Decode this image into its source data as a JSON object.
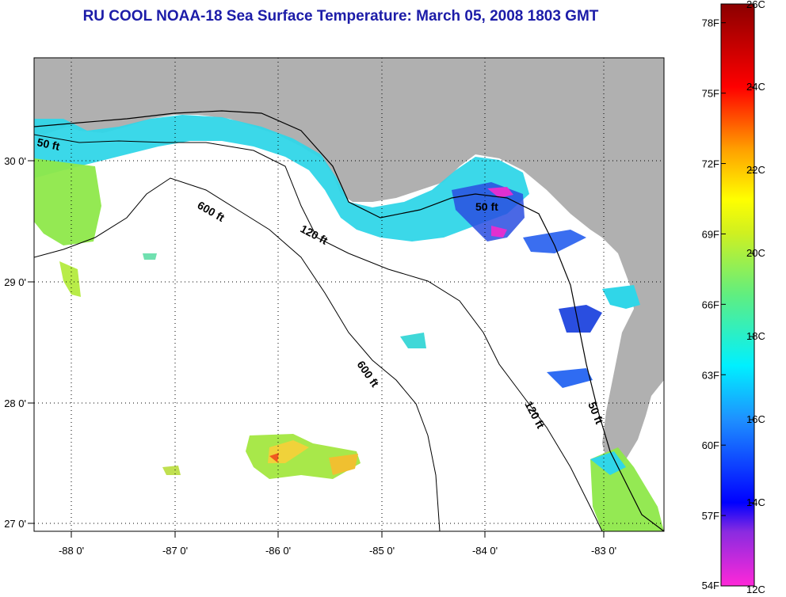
{
  "title": "RU COOL  NOAA-18  Sea Surface Temperature:  March 05, 2008 1803 GMT",
  "map": {
    "lon_labels": [
      "-88 0'",
      "-87 0'",
      "-86 0'",
      "-85 0'",
      "-84 0'",
      "-83 0'"
    ],
    "lat_labels": [
      "30 0'",
      "29 0'",
      "28 0'",
      "27 0'"
    ],
    "contours": [
      {
        "label": "50 ft"
      },
      {
        "label": "600 ft"
      },
      {
        "label": "120 ft"
      },
      {
        "label": "50 ft"
      },
      {
        "label": "600 ft"
      },
      {
        "label": "120 ft"
      },
      {
        "label": "50 ft"
      }
    ],
    "colors": {
      "land": "#b0b0b0",
      "water": "#ffffff",
      "grid": "#000000",
      "cool_water": "#30d6e8",
      "green_water": "#8ee84a",
      "warm_water": "#f0d23a",
      "cold_patch": "#2a4ee0",
      "magenta_patch": "#e030d0"
    }
  },
  "colorbar": {
    "celsius_labels": [
      "26C",
      "24C",
      "22C",
      "20C",
      "18C",
      "16C",
      "14C",
      "12C"
    ],
    "fahrenheit_labels": [
      "78F",
      "75F",
      "72F",
      "69F",
      "66F",
      "63F",
      "60F",
      "57F",
      "54F"
    ],
    "range_c": [
      12,
      26
    ],
    "range_f": [
      54,
      78.8
    ],
    "gradient": [
      {
        "c": 12,
        "color": "#ff28d8"
      },
      {
        "c": 13.3,
        "color": "#8a2be0"
      },
      {
        "c": 14,
        "color": "#0000ff"
      },
      {
        "c": 16,
        "color": "#1e90ff"
      },
      {
        "c": 17.3,
        "color": "#00f0ff"
      },
      {
        "c": 19,
        "color": "#60ee80"
      },
      {
        "c": 20.5,
        "color": "#d0f020"
      },
      {
        "c": 21.3,
        "color": "#ffff00"
      },
      {
        "c": 22.5,
        "color": "#ffa000"
      },
      {
        "c": 24,
        "color": "#ff0000"
      },
      {
        "c": 26,
        "color": "#8b0000"
      }
    ]
  }
}
